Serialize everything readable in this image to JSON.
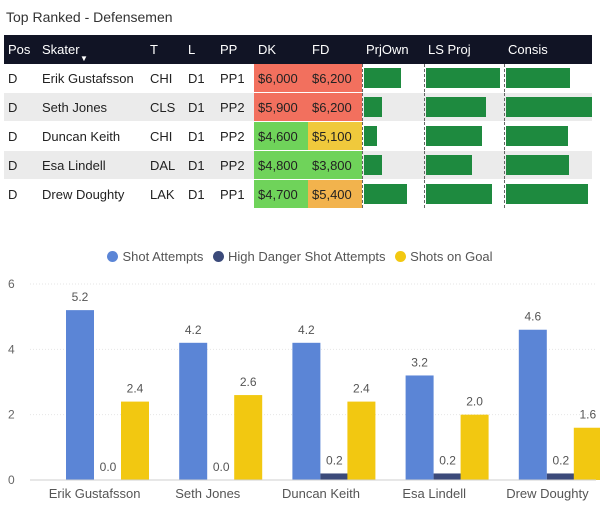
{
  "title": "Top Ranked - Defensemen",
  "table": {
    "headers": [
      "Pos",
      "Skater",
      "T",
      "L",
      "PP",
      "DK",
      "FD",
      "PrjOwn",
      "LS Proj",
      "Consis"
    ],
    "rows": [
      {
        "pos": "D",
        "skater": "Erik Gustafsson",
        "team": "CHI",
        "line": "D1",
        "pp": "PP1",
        "dk": "$6,000",
        "fd": "$6,200",
        "dk_color": "red",
        "fd_color": "red",
        "prjown": 0.62,
        "lsproj": 0.95,
        "consis": 0.75
      },
      {
        "pos": "D",
        "skater": "Seth Jones",
        "team": "CLS",
        "line": "D1",
        "pp": "PP2",
        "dk": "$5,900",
        "fd": "$6,200",
        "dk_color": "red",
        "fd_color": "red",
        "prjown": 0.3,
        "lsproj": 0.78,
        "consis": 1.0
      },
      {
        "pos": "D",
        "skater": "Duncan Keith",
        "team": "CHI",
        "line": "D1",
        "pp": "PP2",
        "dk": "$4,600",
        "fd": "$5,100",
        "dk_color": "green",
        "fd_color": "yellow",
        "prjown": 0.22,
        "lsproj": 0.72,
        "consis": 0.72
      },
      {
        "pos": "D",
        "skater": "Esa Lindell",
        "team": "DAL",
        "line": "D1",
        "pp": "PP2",
        "dk": "$4,800",
        "fd": "$3,800",
        "dk_color": "green",
        "fd_color": "green",
        "prjown": 0.3,
        "lsproj": 0.6,
        "consis": 0.73
      },
      {
        "pos": "D",
        "skater": "Drew Doughty",
        "team": "LAK",
        "line": "D1",
        "pp": "PP1",
        "dk": "$4,700",
        "fd": "$5,400",
        "dk_color": "green",
        "fd_color": "orange",
        "prjown": 0.72,
        "lsproj": 0.85,
        "consis": 0.95
      }
    ]
  },
  "chart_data": {
    "type": "bar",
    "categories": [
      "Erik Gustafsson",
      "Seth Jones",
      "Duncan Keith",
      "Esa Lindell",
      "Drew Doughty"
    ],
    "series": [
      {
        "name": "Shot Attempts",
        "color": "#5b85d6",
        "values": [
          5.2,
          4.2,
          4.2,
          3.2,
          4.6
        ]
      },
      {
        "name": "High Danger Shot Attempts",
        "color": "#3b4a7a",
        "values": [
          0.0,
          0.0,
          0.2,
          0.2,
          0.2
        ]
      },
      {
        "name": "Shots on Goal",
        "color": "#f2c811",
        "values": [
          2.4,
          2.6,
          2.4,
          2.0,
          1.6
        ]
      }
    ],
    "yticks": [
      "0",
      "2",
      "4",
      "6"
    ],
    "ylim": [
      0,
      6
    ],
    "legend_position": "top-center"
  }
}
